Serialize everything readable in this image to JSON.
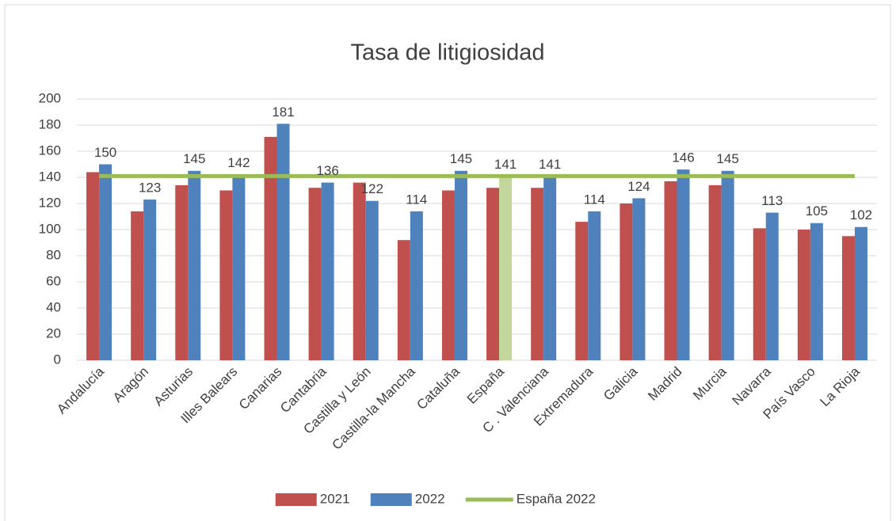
{
  "chart_data": {
    "type": "bar",
    "title": "Tasa de litigiosidad",
    "categories": [
      "Andalucía",
      "Aragón",
      "Asturias",
      "Illes Balears",
      "Canarias",
      "Cantabria",
      "Castilla y León",
      "Castilla-la Mancha",
      "Cataluña",
      "España",
      "C . Valenciana",
      "Extremadura",
      "Galicia",
      "Madrid",
      "Murcia",
      "Navarra",
      "País Vasco",
      "La Rioja"
    ],
    "series": [
      {
        "name": "2021",
        "color": "#c0504d",
        "values": [
          144,
          114,
          134,
          130,
          171,
          132,
          136,
          92,
          130,
          132,
          132,
          106,
          120,
          137,
          134,
          101,
          100,
          95
        ]
      },
      {
        "name": "2022",
        "color": "#4f81bd",
        "values": [
          150,
          123,
          145,
          142,
          181,
          136,
          122,
          114,
          145,
          141,
          141,
          114,
          124,
          146,
          145,
          113,
          105,
          102
        ],
        "point_colors": [
          "#4f81bd",
          "#4f81bd",
          "#4f81bd",
          "#4f81bd",
          "#4f81bd",
          "#4f81bd",
          "#4f81bd",
          "#4f81bd",
          "#4f81bd",
          "#c3d69b",
          "#4f81bd",
          "#4f81bd",
          "#4f81bd",
          "#4f81bd",
          "#4f81bd",
          "#4f81bd",
          "#4f81bd",
          "#4f81bd"
        ],
        "data_labels": true
      },
      {
        "name": "España 2022",
        "type": "line",
        "color": "#9bbb59",
        "values": [
          141,
          141,
          141,
          141,
          141,
          141,
          141,
          141,
          141,
          141,
          141,
          141,
          141,
          141,
          141,
          141,
          141,
          141
        ]
      }
    ],
    "ylim": [
      0,
      200
    ],
    "yticks": [
      0,
      20,
      40,
      60,
      80,
      100,
      120,
      140,
      160,
      180,
      200
    ],
    "grid": true,
    "legend": "bottom"
  }
}
